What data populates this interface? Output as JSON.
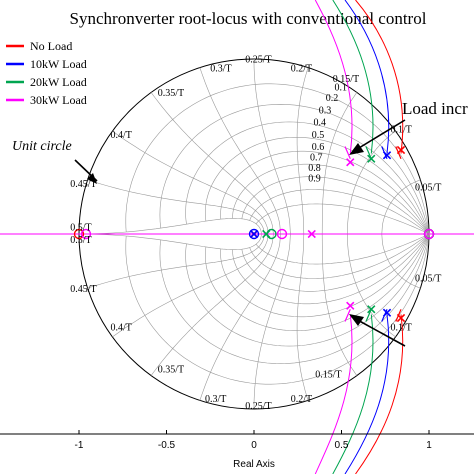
{
  "chart_data": {
    "type": "scatter",
    "title": "Synchronverter root-locus with conventional control",
    "xlabel": "Real Axis",
    "ylabel": "",
    "xlim": [
      -1.45,
      1.28
    ],
    "ylim": [
      -1.12,
      1.12
    ],
    "x_ticks": [
      "-1",
      "-0.5",
      "0",
      "0.5",
      "1"
    ],
    "x_tick_values": [
      -1,
      -0.5,
      0,
      0.5,
      1
    ],
    "grid": "zgrid",
    "legend_position": "top-left",
    "series": [
      {
        "name": "No Load",
        "color": "#ff0000",
        "poles": [
          [
            0.84,
            0.48
          ],
          [
            0.84,
            -0.48
          ],
          [
            0.0,
            0.0
          ]
        ],
        "zeros": [
          [
            1.0,
            0.0
          ],
          [
            -1.0,
            0.0
          ]
        ]
      },
      {
        "name": "10kW Load",
        "color": "#0000ff",
        "poles": [
          [
            0.76,
            0.45
          ],
          [
            0.76,
            -0.45
          ],
          [
            0.0,
            0.0
          ]
        ],
        "zeros": [
          [
            1.0,
            0.0
          ],
          [
            0.0,
            0.0
          ]
        ]
      },
      {
        "name": "20kW Load",
        "color": "#00a550",
        "poles": [
          [
            0.67,
            0.43
          ],
          [
            0.67,
            -0.43
          ],
          [
            0.07,
            0.0
          ]
        ],
        "zeros": [
          [
            1.0,
            0.0
          ],
          [
            0.1,
            0.0
          ]
        ]
      },
      {
        "name": "30kW Load",
        "color": "#ff00ff",
        "poles": [
          [
            0.55,
            0.41
          ],
          [
            0.55,
            -0.41
          ],
          [
            0.33,
            0.0
          ]
        ],
        "zeros": [
          [
            1.0,
            0.0
          ],
          [
            0.16,
            0.0
          ],
          [
            -0.96,
            0.0
          ]
        ]
      }
    ],
    "damping_labels": [
      "0.1",
      "0.2",
      "0.3",
      "0.4",
      "0.5",
      "0.6",
      "0.7",
      "0.8",
      "0.9"
    ],
    "frequency_labels": [
      "0.05/T",
      "0.1/T",
      "0.15/T",
      "0.2/T",
      "0.25/T",
      "0.3/T",
      "0.35/T",
      "0.4/T",
      "0.45/T",
      "0.5/T"
    ],
    "annotations": {
      "unit_circle": "Unit circle",
      "load_increase": "Load incr"
    }
  }
}
